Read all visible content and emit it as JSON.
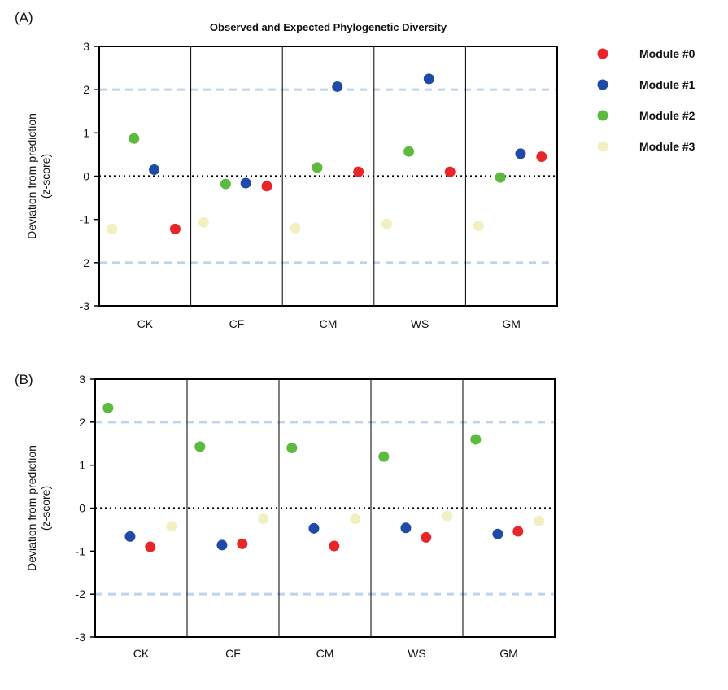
{
  "chart_data": [
    {
      "panel_label": "(A)",
      "type": "scatter",
      "title": "Observed and Expected Phylogenetic Diversity",
      "ylabel_line1": "Deviation from prediction",
      "ylabel_line2": "(z-score)",
      "xlabel": "",
      "ylim": [
        -3,
        3
      ],
      "yticks": [
        "3",
        "2",
        "1",
        "0",
        "-1",
        "-2",
        "-3"
      ],
      "reference_lines": [
        2,
        -2
      ],
      "zero_line": 0,
      "categories": [
        "CK",
        "CF",
        "CM",
        "WS",
        "GM"
      ],
      "series": [
        {
          "name": "Module #0",
          "color": "#e8262a",
          "values": [
            -1.22,
            -0.23,
            0.1,
            0.1,
            0.45
          ]
        },
        {
          "name": "Module #1",
          "color": "#1f4aa8",
          "values": [
            0.15,
            -0.16,
            2.07,
            2.25,
            0.52
          ]
        },
        {
          "name": "Module #2",
          "color": "#5cbb3e",
          "values": [
            0.87,
            -0.18,
            0.2,
            0.57,
            -0.03
          ]
        },
        {
          "name": "Module #3",
          "color": "#f2f0c0",
          "values": [
            -1.22,
            -1.07,
            -1.2,
            -1.1,
            -1.15
          ]
        }
      ]
    },
    {
      "panel_label": "(B)",
      "type": "scatter",
      "title": "",
      "ylabel_line1": "Deviation from prediction",
      "ylabel_line2": "(z-score)",
      "xlabel": "",
      "ylim": [
        -3,
        3
      ],
      "yticks": [
        "3",
        "2",
        "1",
        "0",
        "-1",
        "-2",
        "-3"
      ],
      "reference_lines": [
        2,
        -2
      ],
      "zero_line": 0,
      "categories": [
        "CK",
        "CF",
        "CM",
        "WS",
        "GM"
      ],
      "series": [
        {
          "name": "Module #0",
          "color": "#e8262a",
          "values": [
            -0.9,
            -0.83,
            -0.88,
            -0.68,
            -0.54
          ]
        },
        {
          "name": "Module #1",
          "color": "#1f4aa8",
          "values": [
            -0.66,
            -0.86,
            -0.47,
            -0.46,
            -0.6
          ]
        },
        {
          "name": "Module #2",
          "color": "#5cbb3e",
          "values": [
            2.33,
            1.43,
            1.4,
            1.2,
            1.6
          ]
        },
        {
          "name": "Module #3",
          "color": "#f2f0c0",
          "values": [
            -0.42,
            -0.25,
            -0.25,
            -0.18,
            -0.3
          ]
        }
      ]
    }
  ],
  "legend": {
    "placement": "right",
    "items": [
      {
        "label": "Module #0",
        "color": "#e8262a"
      },
      {
        "label": "Module #1",
        "color": "#1f4aa8"
      },
      {
        "label": "Module #2",
        "color": "#5cbb3e"
      },
      {
        "label": "Module #3",
        "color": "#f2f0c0"
      }
    ]
  },
  "styles": {
    "reference_line_color": "#bcd4ee",
    "zero_line_color": "#000000",
    "axis_color": "#000000"
  }
}
